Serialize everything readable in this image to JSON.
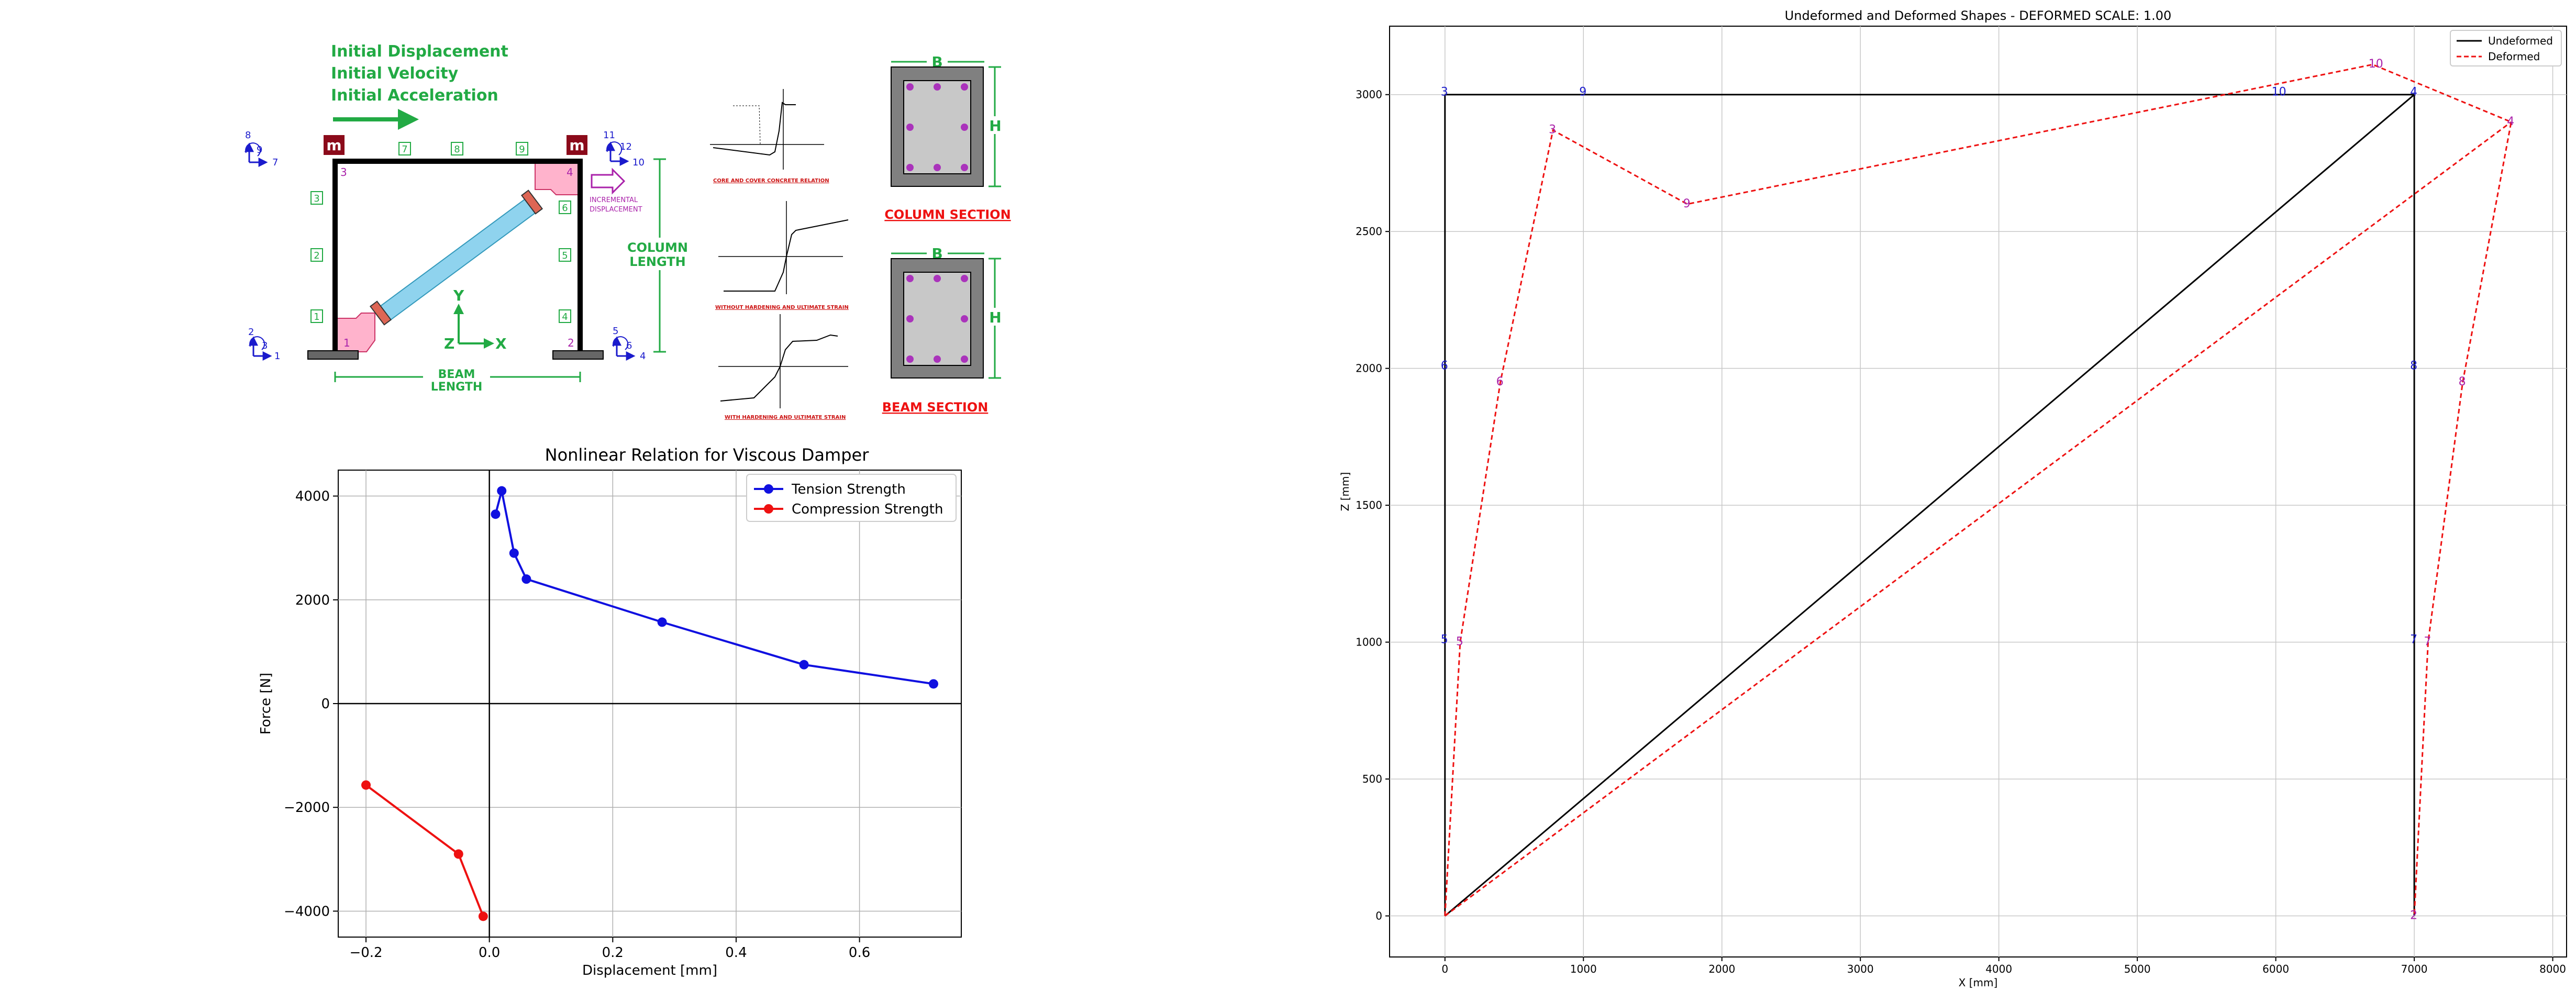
{
  "colors": {
    "green": "#22aa44",
    "blue": "#1a1acc",
    "purple": "#aa22aa",
    "maroon": "#8b0a1a",
    "pink": "#ffb3cc",
    "damper": "#8fd3ee",
    "red_line": "#ee1111",
    "gray_section": "#808080",
    "gray_core": "#c8c8c8"
  },
  "schematic": {
    "initial_displacement": "Initial Displacement",
    "initial_velocity": "Initial Velocity",
    "initial_acceleration": "Initial Acceleration",
    "mass_label": "m",
    "incremental_displacement": [
      "INCREMENTAL",
      "DISPLACEMENT"
    ],
    "column_length": [
      "COLUMN",
      "LENGTH"
    ],
    "beam_length": [
      "BEAM",
      "LENGTH"
    ],
    "axis_y": "Y",
    "axis_x": "X",
    "axis_z": "Z",
    "node_labels": [
      "1",
      "2",
      "3",
      "4"
    ],
    "element_labels": [
      "1",
      "2",
      "3",
      "4",
      "5",
      "6",
      "7",
      "8",
      "9"
    ],
    "dof_labels": {
      "n1": [
        "2",
        "3",
        "1"
      ],
      "n2": [
        "5",
        "6",
        "4"
      ],
      "n3": [
        "8",
        "9",
        "7"
      ],
      "n4": [
        "11",
        "12",
        "10"
      ]
    },
    "curve_captions": [
      "CORE AND COVER CONCRETE RELATION",
      "WITHOUT HARDENING AND ULTIMATE STRAIN",
      "WITH HARDENING AND ULTIMATE STRAIN"
    ],
    "column_section": "COLUMN SECTION",
    "beam_section": "BEAM SECTION",
    "dim_b": "B",
    "dim_h": "H"
  },
  "chart_data": [
    {
      "type": "line",
      "title": "Nonlinear Relation for Viscous Damper",
      "xlabel": "Displacement [mm]",
      "ylabel": "Force [N]",
      "xlim": [
        -0.245,
        0.765
      ],
      "ylim": [
        -4500,
        4500
      ],
      "xticks": [
        -0.2,
        0.0,
        0.2,
        0.4,
        0.6
      ],
      "xtick_labels": [
        "−0.2",
        "0.0",
        "0.2",
        "0.4",
        "0.6"
      ],
      "yticks": [
        -4000,
        -2000,
        0,
        2000,
        4000
      ],
      "ytick_labels": [
        "−4000",
        "−2000",
        "0",
        "2000",
        "4000"
      ],
      "grid": true,
      "legend_position": "top-right",
      "series": [
        {
          "name": "Tension Strength",
          "color": "#1010e0",
          "x": [
            0.01,
            0.02,
            0.04,
            0.06,
            0.28,
            0.51,
            0.72
          ],
          "y": [
            3650,
            4100,
            2900,
            2400,
            1570,
            750,
            380
          ]
        },
        {
          "name": "Compression Strength",
          "color": "#ee1111",
          "x": [
            -0.2,
            -0.05,
            -0.01
          ],
          "y": [
            -1570,
            -2900,
            -4100
          ]
        }
      ]
    },
    {
      "type": "line",
      "title": "Undeformed and Deformed Shapes - DEFORMED SCALE: 1.00",
      "xlabel": "X [mm]",
      "ylabel": "Z [mm]",
      "xlim": [
        -400,
        8100
      ],
      "ylim": [
        -150,
        3250
      ],
      "xticks": [
        0,
        1000,
        2000,
        3000,
        4000,
        5000,
        6000,
        7000,
        8000
      ],
      "xtick_labels": [
        "0",
        "1000",
        "2000",
        "3000",
        "4000",
        "5000",
        "6000",
        "7000",
        "8000"
      ],
      "yticks": [
        0,
        500,
        1000,
        1500,
        2000,
        2500,
        3000
      ],
      "ytick_labels": [
        "0",
        "500",
        "1000",
        "1500",
        "2000",
        "2500",
        "3000"
      ],
      "grid": true,
      "legend_position": "top-right",
      "series": [
        {
          "name": "Undeformed",
          "color": "#000000",
          "style": "solid",
          "segments": [
            [
              [
                0,
                0
              ],
              [
                0,
                3000
              ]
            ],
            [
              [
                0,
                3000
              ],
              [
                7000,
                3000
              ]
            ],
            [
              [
                7000,
                3000
              ],
              [
                7000,
                0
              ]
            ],
            [
              [
                0,
                0
              ],
              [
                7000,
                3000
              ]
            ]
          ]
        },
        {
          "name": "Deformed",
          "color": "#ee1111",
          "style": "dashed",
          "segments": [
            [
              [
                0,
                0
              ],
              [
                110,
                1000
              ],
              [
                400,
                1950
              ],
              [
                780,
                2870
              ],
              [
                1750,
                2600
              ],
              [
                6700,
                3110
              ],
              [
                7700,
                2900
              ],
              [
                7350,
                1950
              ],
              [
                7100,
                1000
              ],
              [
                7000,
                0
              ]
            ],
            [
              [
                0,
                0
              ],
              [
                7700,
                2900
              ]
            ]
          ]
        }
      ],
      "undeformed_node_labels": [
        {
          "text": "3",
          "x": 0,
          "y": 3000
        },
        {
          "text": "9",
          "x": 1000,
          "y": 3000
        },
        {
          "text": "10",
          "x": 6000,
          "y": 3000
        },
        {
          "text": "4",
          "x": 7000,
          "y": 3000
        },
        {
          "text": "6",
          "x": 0,
          "y": 2000
        },
        {
          "text": "5",
          "x": 0,
          "y": 1000
        },
        {
          "text": "8",
          "x": 7000,
          "y": 2000
        },
        {
          "text": "7",
          "x": 7000,
          "y": 1000
        }
      ],
      "deformed_node_labels": [
        {
          "text": "3",
          "x": 780,
          "y": 2870
        },
        {
          "text": "9",
          "x": 1750,
          "y": 2600
        },
        {
          "text": "10",
          "x": 6700,
          "y": 3110
        },
        {
          "text": "4",
          "x": 7700,
          "y": 2900
        },
        {
          "text": "6",
          "x": 400,
          "y": 1950
        },
        {
          "text": "5",
          "x": 110,
          "y": 1000
        },
        {
          "text": "8",
          "x": 7350,
          "y": 1950
        },
        {
          "text": "7",
          "x": 7100,
          "y": 1000
        },
        {
          "text": "2",
          "x": 7000,
          "y": 0
        }
      ]
    }
  ]
}
